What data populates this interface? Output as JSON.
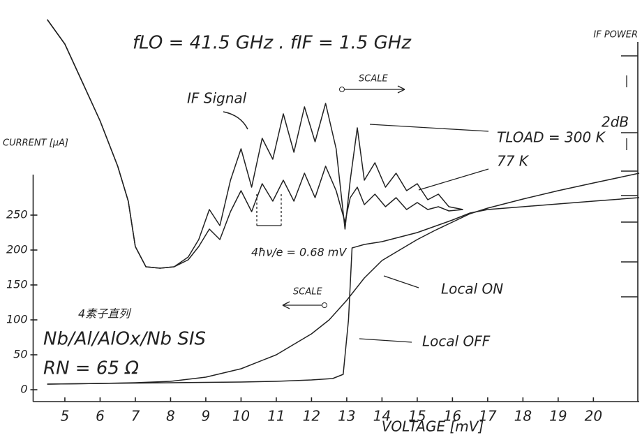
{
  "chart_data": {
    "type": "line",
    "title": "fLO = 41.5 GHz . fIF = 1.5 GHz",
    "x_label": "VOLTAGE [mV]",
    "y_label": "CURRENT [μA]",
    "y2_label": "IF POWER",
    "xlim": [
      4.1,
      21.3
    ],
    "xticks": [
      5,
      6,
      7,
      8,
      9,
      10,
      11,
      12,
      13,
      14,
      15,
      16,
      17,
      18,
      19,
      20
    ],
    "ylim": [
      -17,
      530
    ],
    "yticks": [
      0,
      50,
      100,
      150,
      200,
      250
    ],
    "grid": false,
    "series": [
      {
        "name": "TLOAD = 300 K",
        "color": "#222222",
        "x": [
          4.5,
          5,
          5.5,
          6,
          6.5,
          6.8,
          7,
          7.3,
          7.7,
          8.1,
          8.5,
          8.8,
          9.1,
          9.4,
          9.7,
          10,
          10.3,
          10.6,
          10.9,
          11.2,
          11.5,
          11.8,
          12.1,
          12.4,
          12.7,
          12.95,
          13.1,
          13.3,
          13.5,
          13.8,
          14.1,
          14.4,
          14.7,
          15,
          15.3,
          15.6,
          15.9,
          16.3
        ],
        "values": [
          530,
          495,
          440,
          385,
          320,
          270,
          205,
          176,
          174,
          176,
          190,
          215,
          258,
          235,
          300,
          345,
          290,
          360,
          330,
          395,
          340,
          405,
          355,
          410,
          345,
          230,
          300,
          375,
          300,
          325,
          290,
          310,
          285,
          295,
          272,
          280,
          262,
          258
        ]
      },
      {
        "name": "77 K",
        "color": "#222222",
        "x": [
          4.5,
          5,
          5.5,
          6,
          6.5,
          6.8,
          7,
          7.3,
          7.7,
          8.1,
          8.5,
          8.8,
          9.1,
          9.4,
          9.7,
          10,
          10.3,
          10.6,
          10.9,
          11.2,
          11.5,
          11.8,
          12.1,
          12.4,
          12.7,
          12.95,
          13.1,
          13.3,
          13.5,
          13.8,
          14.1,
          14.4,
          14.7,
          15,
          15.3,
          15.6,
          15.9,
          16.3
        ],
        "values": [
          530,
          495,
          440,
          385,
          320,
          270,
          205,
          176,
          174,
          176,
          186,
          205,
          230,
          215,
          255,
          285,
          255,
          295,
          270,
          300,
          270,
          310,
          275,
          320,
          285,
          240,
          275,
          290,
          265,
          280,
          262,
          275,
          258,
          268,
          258,
          262,
          256,
          258
        ]
      },
      {
        "name": "Local ON",
        "color": "#222222",
        "x": [
          4.5,
          6,
          7,
          8,
          9,
          10,
          11,
          12,
          12.5,
          13,
          13.5,
          14,
          14.5,
          15,
          15.5,
          16,
          16.5,
          17,
          18,
          19,
          20,
          21.3
        ],
        "values": [
          8,
          9,
          10,
          12,
          18,
          30,
          50,
          80,
          100,
          128,
          160,
          185,
          200,
          215,
          228,
          240,
          252,
          260,
          273,
          285,
          296,
          310
        ]
      },
      {
        "name": "Local OFF",
        "color": "#222222",
        "x": [
          4.5,
          6,
          8,
          10,
          11,
          12,
          12.6,
          12.9,
          13.05,
          13.15,
          13.5,
          14,
          15,
          16,
          16.5,
          17,
          18,
          19,
          20,
          21.3
        ],
        "values": [
          8,
          9,
          10,
          11,
          12,
          14,
          16,
          22,
          100,
          203,
          208,
          212,
          225,
          243,
          253,
          258,
          262,
          266,
          270,
          275
        ]
      }
    ],
    "annotations": [
      "IF Signal",
      "SCALE",
      "SCALE",
      "4ħν/e = 0.68 mV",
      "4素子直列",
      "Nb/Al/AlOx/Nb SIS",
      "RN = 65 Ω",
      "2dB"
    ]
  }
}
